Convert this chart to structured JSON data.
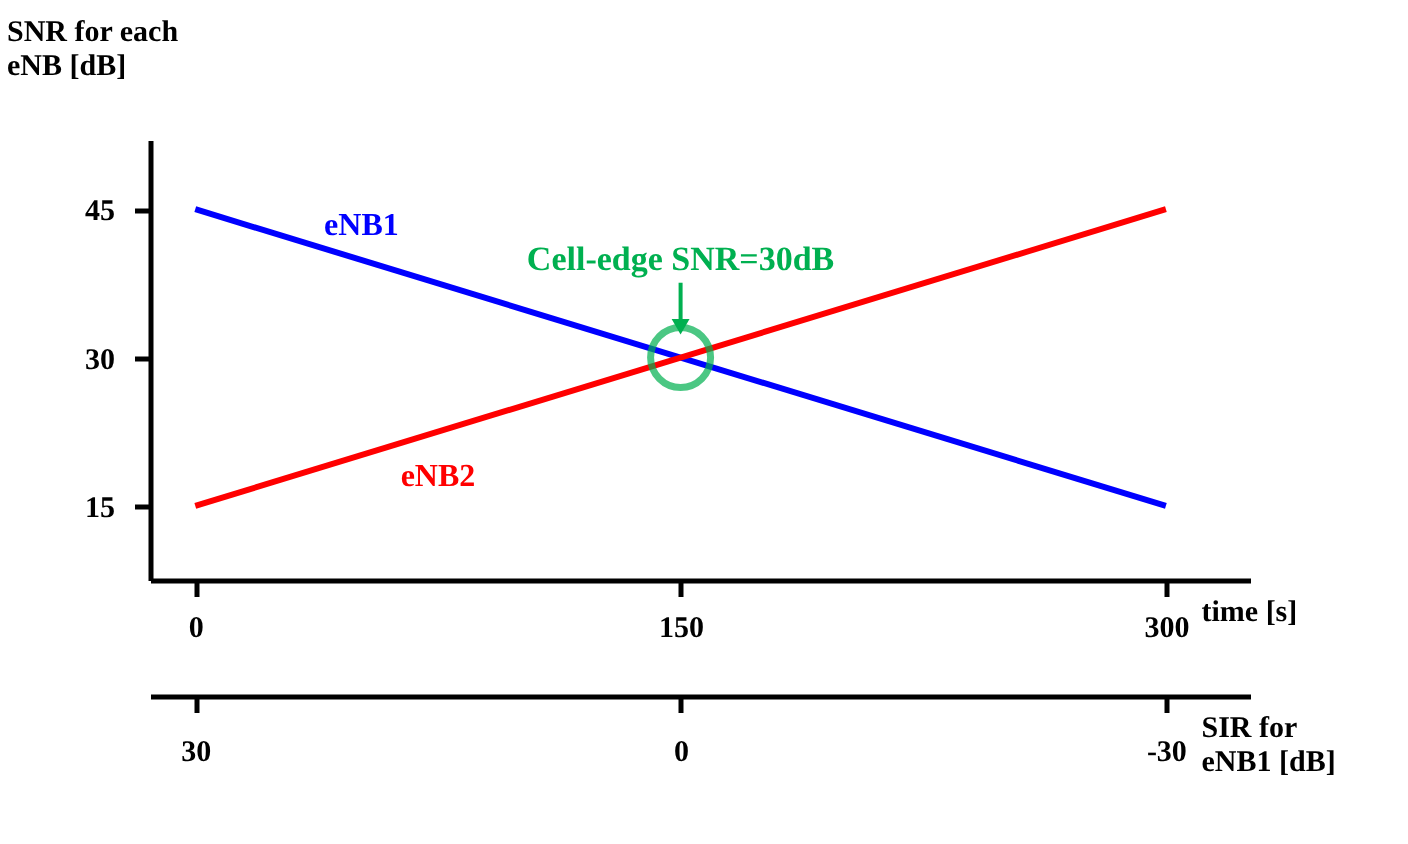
{
  "chart_data": {
    "type": "line",
    "ylabel": "SNR for each eNB [dB]",
    "xlabel": "time [s]",
    "x2label": "SIR for eNB1 [dB]",
    "x": [
      0,
      300
    ],
    "series": [
      {
        "name": "eNB1",
        "color": "#0000ff",
        "values": [
          45,
          15
        ]
      },
      {
        "name": "eNB2",
        "color": "#ff0000",
        "values": [
          15,
          45
        ]
      }
    ],
    "xlim": [
      -14,
      326
    ],
    "xticks": [
      0,
      150,
      300
    ],
    "x2lim": [
      32.8,
      -35.2
    ],
    "x2ticks": [
      30,
      0,
      -30
    ],
    "ylim": [
      7.5,
      52
    ],
    "yticks": [
      15,
      30,
      45
    ],
    "annotations": [
      {
        "text": "Cell-edge SNR=30dB",
        "x": 150,
        "y": 30
      }
    ],
    "grid": false,
    "legend": false,
    "marker": "none",
    "line_style": "solid"
  }
}
